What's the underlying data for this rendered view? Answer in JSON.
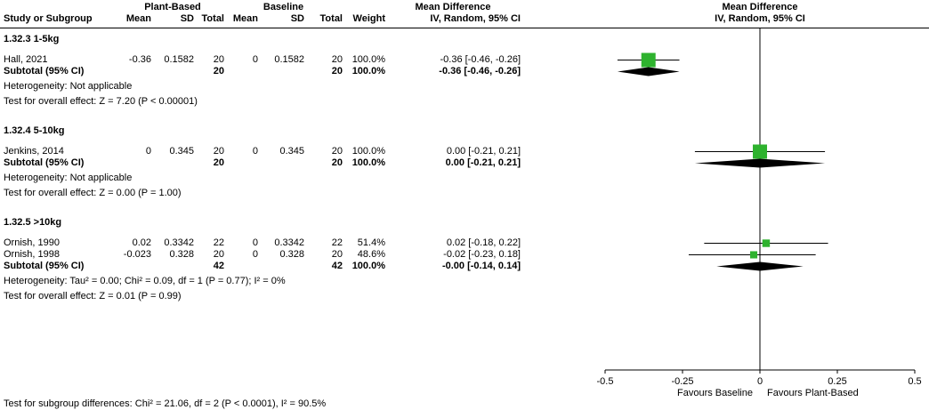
{
  "header": {
    "group_cols": [
      "Plant-Based",
      "Baseline",
      "Mean Difference",
      "Mean Difference"
    ],
    "columns": [
      "Study or Subgroup",
      "Mean",
      "SD",
      "Total",
      "Mean",
      "SD",
      "Total",
      "Weight",
      "IV, Random, 95% CI",
      "IV, Random, 95% CI"
    ]
  },
  "colors": {
    "marker": "#2eb22e",
    "diamond": "#000000",
    "line": "#000000",
    "text": "#000000"
  },
  "chart_data": {
    "type": "forest",
    "effect_measure": "Mean Difference",
    "model": "IV, Random, 95% CI",
    "xlim": [
      -0.5,
      0.5
    ],
    "x_ticks": [
      -0.5,
      -0.25,
      0,
      0.25,
      0.5
    ],
    "x_tick_labels": [
      "-0.5",
      "-0.25",
      "0",
      "0.25",
      "0.5"
    ],
    "x_left_label": "Favours Baseline",
    "x_right_label": "Favours Plant-Based",
    "subgroups": [
      {
        "title": "1.32.3 1-5kg",
        "studies": [
          {
            "study": "Hall, 2021",
            "exp_mean": "-0.36",
            "exp_sd": "0.1582",
            "exp_total": "20",
            "ctl_mean": "0",
            "ctl_sd": "0.1582",
            "ctl_total": "20",
            "weight": "100.0%",
            "ci_label": "-0.36 [-0.46, -0.26]",
            "est": -0.36,
            "ci_low": -0.46,
            "ci_high": -0.26,
            "weight_value": 100.0
          }
        ],
        "subtotal": {
          "label": "Subtotal (95% CI)",
          "exp_total": "20",
          "ctl_total": "20",
          "weight": "100.0%",
          "ci_label": "-0.36 [-0.46, -0.26]",
          "est": -0.36,
          "ci_low": -0.46,
          "ci_high": -0.26
        },
        "heterogeneity": "Heterogeneity: Not applicable",
        "overall_effect": "Test for overall effect: Z = 7.20 (P < 0.00001)"
      },
      {
        "title": "1.32.4 5-10kg",
        "studies": [
          {
            "study": "Jenkins, 2014",
            "exp_mean": "0",
            "exp_sd": "0.345",
            "exp_total": "20",
            "ctl_mean": "0",
            "ctl_sd": "0.345",
            "ctl_total": "20",
            "weight": "100.0%",
            "ci_label": "0.00 [-0.21, 0.21]",
            "est": 0,
            "ci_low": -0.21,
            "ci_high": 0.21,
            "weight_value": 100.0
          }
        ],
        "subtotal": {
          "label": "Subtotal (95% CI)",
          "exp_total": "20",
          "ctl_total": "20",
          "weight": "100.0%",
          "ci_label": "0.00 [-0.21, 0.21]",
          "est": 0,
          "ci_low": -0.21,
          "ci_high": 0.21
        },
        "heterogeneity": "Heterogeneity: Not applicable",
        "overall_effect": "Test for overall effect: Z = 0.00 (P = 1.00)"
      },
      {
        "title": "1.32.5 >10kg",
        "studies": [
          {
            "study": "Ornish, 1990",
            "exp_mean": "0.02",
            "exp_sd": "0.3342",
            "exp_total": "22",
            "ctl_mean": "0",
            "ctl_sd": "0.3342",
            "ctl_total": "22",
            "weight": "51.4%",
            "ci_label": "0.02 [-0.18, 0.22]",
            "est": 0.02,
            "ci_low": -0.18,
            "ci_high": 0.22,
            "weight_value": 51.4
          },
          {
            "study": "Ornish, 1998",
            "exp_mean": "-0.023",
            "exp_sd": "0.328",
            "exp_total": "20",
            "ctl_mean": "0",
            "ctl_sd": "0.328",
            "ctl_total": "20",
            "weight": "48.6%",
            "ci_label": "-0.02 [-0.23, 0.18]",
            "est": -0.02,
            "ci_low": -0.23,
            "ci_high": 0.18,
            "weight_value": 48.6
          }
        ],
        "subtotal": {
          "label": "Subtotal (95% CI)",
          "exp_total": "42",
          "ctl_total": "42",
          "weight": "100.0%",
          "ci_label": "-0.00 [-0.14, 0.14]",
          "est": 0,
          "ci_low": -0.14,
          "ci_high": 0.14
        },
        "heterogeneity": "Heterogeneity: Tau² = 0.00; Chi² = 0.09, df = 1 (P = 0.77); I² = 0%",
        "overall_effect": "Test for overall effect: Z = 0.01 (P = 0.99)"
      }
    ],
    "subgroup_difference": "Test for subgroup differences: Chi² = 21.06, df = 2 (P < 0.0001), I² = 90.5%"
  }
}
